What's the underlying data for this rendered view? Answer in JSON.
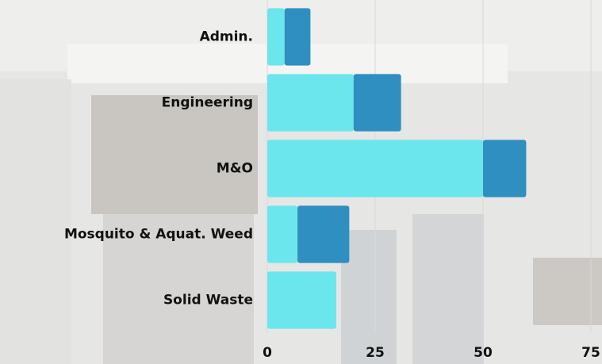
{
  "chart_data": {
    "type": "stacked_bar_horizontal",
    "categories": [
      "Admin.",
      "Engineering",
      "M&O",
      "Mosquito & Aquat. Weed",
      "Solid Waste"
    ],
    "series": [
      {
        "color": "#6ae6ec",
        "values": [
          4,
          20,
          50,
          7,
          16
        ]
      },
      {
        "color": "#2e8fc0",
        "values": [
          6,
          11,
          10,
          12,
          0
        ]
      }
    ],
    "xlim": [
      0,
      75
    ],
    "xticks": [
      0,
      25,
      50,
      75
    ],
    "grid": true
  }
}
